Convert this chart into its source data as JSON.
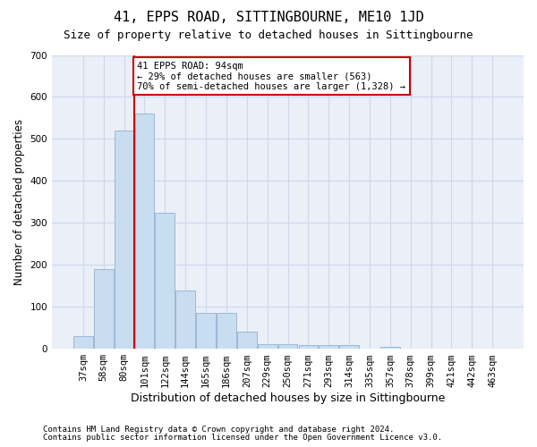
{
  "title": "41, EPPS ROAD, SITTINGBOURNE, ME10 1JD",
  "subtitle": "Size of property relative to detached houses in Sittingbourne",
  "xlabel": "Distribution of detached houses by size in Sittingbourne",
  "ylabel": "Number of detached properties",
  "footnote1": "Contains HM Land Registry data © Crown copyright and database right 2024.",
  "footnote2": "Contains public sector information licensed under the Open Government Licence v3.0.",
  "categories": [
    "37sqm",
    "58sqm",
    "80sqm",
    "101sqm",
    "122sqm",
    "144sqm",
    "165sqm",
    "186sqm",
    "207sqm",
    "229sqm",
    "250sqm",
    "271sqm",
    "293sqm",
    "314sqm",
    "335sqm",
    "357sqm",
    "378sqm",
    "399sqm",
    "421sqm",
    "442sqm",
    "463sqm"
  ],
  "values": [
    30,
    190,
    520,
    560,
    325,
    138,
    85,
    85,
    40,
    12,
    10,
    8,
    8,
    8,
    0,
    5,
    0,
    0,
    0,
    0,
    0
  ],
  "bar_color": "#c9ddf0",
  "bar_edge_color": "#9bb8d8",
  "bar_linewidth": 0.7,
  "vline_index": 3,
  "vline_color": "#cc0000",
  "vline_linewidth": 1.5,
  "annotation_text": "41 EPPS ROAD: 94sqm\n← 29% of detached houses are smaller (563)\n70% of semi-detached houses are larger (1,328) →",
  "annotation_box_color": "#ffffff",
  "annotation_box_edge": "#cc0000",
  "ylim": [
    0,
    700
  ],
  "yticks": [
    0,
    100,
    200,
    300,
    400,
    500,
    600,
    700
  ],
  "grid_color": "#cdd8ea",
  "bg_color": "#eaeff8",
  "title_fontsize": 11,
  "subtitle_fontsize": 9,
  "xlabel_fontsize": 9,
  "ylabel_fontsize": 8.5,
  "tick_fontsize": 7.5,
  "annotation_fontsize": 7.5,
  "footnote_fontsize": 6.5
}
